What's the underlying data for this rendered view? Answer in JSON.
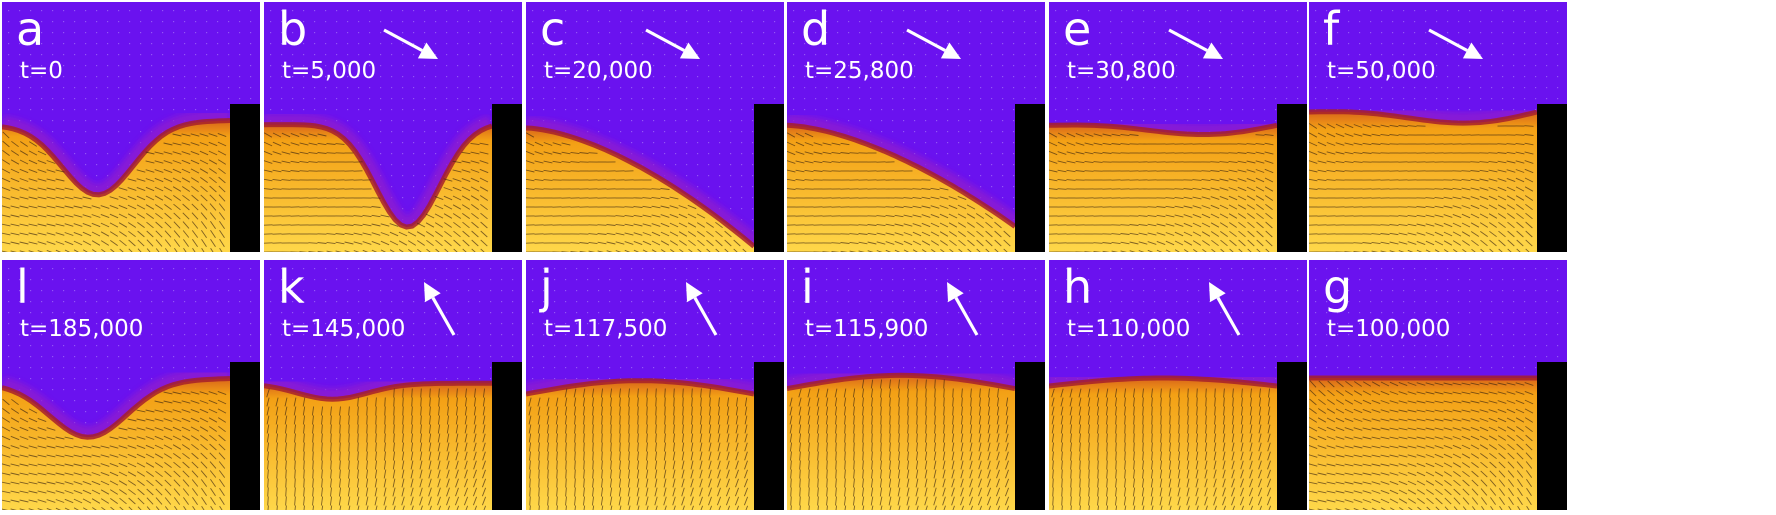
{
  "panels": [
    {
      "label": "a",
      "time": "t=0",
      "director": null,
      "interface": {
        "type": "well",
        "left": 0.07,
        "right": 0.91,
        "depth": 0.54,
        "center": 0.42,
        "width": 0.22
      }
    },
    {
      "label": "b",
      "time": "t=5,000",
      "director": "down-right",
      "interface": {
        "type": "well",
        "left": 0.12,
        "right": 0.5,
        "depth": 0.78,
        "center": 0.63,
        "width": 0.2
      }
    },
    {
      "label": "c",
      "time": "t=20,000",
      "director": "down-right",
      "interface": {
        "type": "arc",
        "left": 0.0,
        "right": 1.0,
        "start": 0.06,
        "end": 0.95
      }
    },
    {
      "label": "d",
      "time": "t=25,800",
      "director": "down-right",
      "interface": {
        "type": "arc",
        "left": 0.01,
        "right": 0.97,
        "start": 0.04,
        "end": 0.8
      }
    },
    {
      "label": "e",
      "time": "t=30,800",
      "director": "down-right",
      "interface": {
        "type": "bump",
        "base": 0.0,
        "amp": 0.05
      }
    },
    {
      "label": "f",
      "time": "t=50,000",
      "director": "down-right",
      "interface": {
        "type": "bump",
        "base": -0.1,
        "amp": 0.06
      }
    },
    {
      "label": "l",
      "time": "t=185,000",
      "director": null,
      "interface": {
        "type": "well",
        "left": 0.03,
        "right": 0.91,
        "depth": 0.42,
        "center": 0.38,
        "width": 0.24
      }
    },
    {
      "label": "k",
      "time": "t=145,000",
      "director": "up-left",
      "interface": {
        "type": "well",
        "left": 0.02,
        "right": 0.0,
        "depth": 0.12,
        "center": 0.3,
        "width": 0.22
      }
    },
    {
      "label": "j",
      "time": "t=117,500",
      "director": "up-left",
      "interface": {
        "type": "dome",
        "base": 0.06,
        "amp": 0.1
      }
    },
    {
      "label": "i",
      "time": "t=115,900",
      "director": "up-left",
      "interface": {
        "type": "dome",
        "base": 0.02,
        "amp": 0.1
      }
    },
    {
      "label": "h",
      "time": "t=110,000",
      "director": "up-left",
      "interface": {
        "type": "dome",
        "base": 0.0,
        "amp": 0.06
      }
    },
    {
      "label": "g",
      "time": "t=100,000",
      "director": null,
      "interface": {
        "type": "flat",
        "base": 0.0
      }
    }
  ],
  "colors": {
    "isotropic": "#6a12ef",
    "nematic_light": "#ffd84a",
    "nematic_mid": "#f3a015",
    "nematic_dark": "#d9661a",
    "interface": "#a6202a",
    "wall": "#000000",
    "arrow": "#ffffff"
  }
}
